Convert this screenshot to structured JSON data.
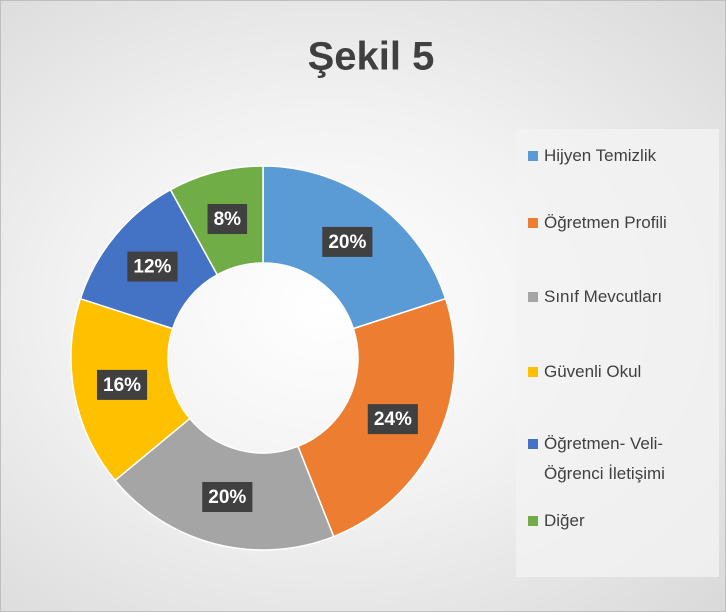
{
  "chart_data": {
    "type": "donut",
    "title": "Şekil 5",
    "categories": [
      "Hijyen Temizlik",
      "Öğretmen Profili",
      "Sınıf Mevcutları",
      "Güvenli Okul",
      "Öğretmen- Veli- Öğrenci İletişimi",
      "Diğer"
    ],
    "values": [
      20,
      24,
      20,
      16,
      12,
      8
    ],
    "value_labels": [
      "20%",
      "24%",
      "20%",
      "16%",
      "12%",
      "8%"
    ],
    "colors": [
      "#5b9bd5",
      "#ed7d31",
      "#a5a5a5",
      "#ffc000",
      "#4472c4",
      "#70ad47"
    ],
    "legend": "right"
  }
}
